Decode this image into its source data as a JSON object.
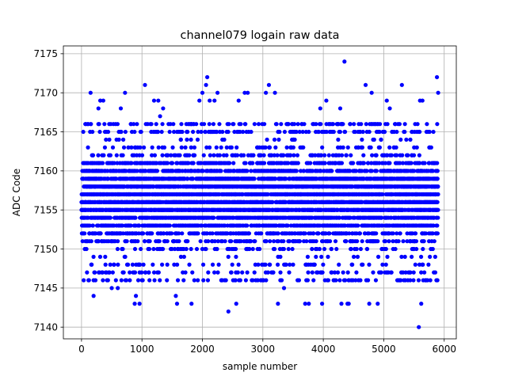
{
  "chart_data": {
    "type": "scatter",
    "title": "channel079 logain raw data",
    "xlabel": "sample number",
    "ylabel": "ADC Code",
    "xlim": [
      -300,
      6200
    ],
    "ylim": [
      7138.5,
      7176
    ],
    "x_ticks": [
      0,
      1000,
      2000,
      3000,
      4000,
      5000,
      6000
    ],
    "y_ticks": [
      7140,
      7145,
      7150,
      7155,
      7160,
      7165,
      7170,
      7175
    ],
    "grid": true,
    "marker_color": "#0000ff",
    "n_points": 5900,
    "typical_range": [
      7149,
      7164
    ],
    "outliers": [
      {
        "x": 150,
        "y": 7170
      },
      {
        "x": 200,
        "y": 7144
      },
      {
        "x": 280,
        "y": 7168
      },
      {
        "x": 310,
        "y": 7169
      },
      {
        "x": 360,
        "y": 7169
      },
      {
        "x": 500,
        "y": 7145
      },
      {
        "x": 600,
        "y": 7145
      },
      {
        "x": 650,
        "y": 7168
      },
      {
        "x": 720,
        "y": 7170
      },
      {
        "x": 880,
        "y": 7143
      },
      {
        "x": 900,
        "y": 7144
      },
      {
        "x": 960,
        "y": 7143
      },
      {
        "x": 1050,
        "y": 7171
      },
      {
        "x": 1000,
        "y": 7146
      },
      {
        "x": 1200,
        "y": 7169
      },
      {
        "x": 1270,
        "y": 7169
      },
      {
        "x": 1300,
        "y": 7167
      },
      {
        "x": 1350,
        "y": 7168
      },
      {
        "x": 1560,
        "y": 7144
      },
      {
        "x": 1580,
        "y": 7143
      },
      {
        "x": 1820,
        "y": 7143
      },
      {
        "x": 1950,
        "y": 7169
      },
      {
        "x": 2000,
        "y": 7170
      },
      {
        "x": 2060,
        "y": 7171
      },
      {
        "x": 2080,
        "y": 7172
      },
      {
        "x": 2120,
        "y": 7169
      },
      {
        "x": 2200,
        "y": 7169
      },
      {
        "x": 2250,
        "y": 7170
      },
      {
        "x": 2430,
        "y": 7142
      },
      {
        "x": 2560,
        "y": 7143
      },
      {
        "x": 2600,
        "y": 7169
      },
      {
        "x": 2700,
        "y": 7170
      },
      {
        "x": 2750,
        "y": 7170
      },
      {
        "x": 3050,
        "y": 7170
      },
      {
        "x": 3100,
        "y": 7171
      },
      {
        "x": 3200,
        "y": 7170
      },
      {
        "x": 3250,
        "y": 7143
      },
      {
        "x": 3350,
        "y": 7145
      },
      {
        "x": 3700,
        "y": 7143
      },
      {
        "x": 3760,
        "y": 7143
      },
      {
        "x": 3950,
        "y": 7168
      },
      {
        "x": 3980,
        "y": 7143
      },
      {
        "x": 4050,
        "y": 7169
      },
      {
        "x": 4150,
        "y": 7166
      },
      {
        "x": 4280,
        "y": 7168
      },
      {
        "x": 4300,
        "y": 7143
      },
      {
        "x": 4350,
        "y": 7174
      },
      {
        "x": 4400,
        "y": 7143
      },
      {
        "x": 4420,
        "y": 7143
      },
      {
        "x": 4700,
        "y": 7171
      },
      {
        "x": 4760,
        "y": 7143
      },
      {
        "x": 4800,
        "y": 7170
      },
      {
        "x": 4900,
        "y": 7143
      },
      {
        "x": 5050,
        "y": 7169
      },
      {
        "x": 5100,
        "y": 7168
      },
      {
        "x": 5300,
        "y": 7171
      },
      {
        "x": 5600,
        "y": 7169
      },
      {
        "x": 5640,
        "y": 7169
      },
      {
        "x": 5580,
        "y": 7140
      },
      {
        "x": 5620,
        "y": 7143
      },
      {
        "x": 5880,
        "y": 7172
      },
      {
        "x": 5900,
        "y": 7170
      }
    ]
  }
}
